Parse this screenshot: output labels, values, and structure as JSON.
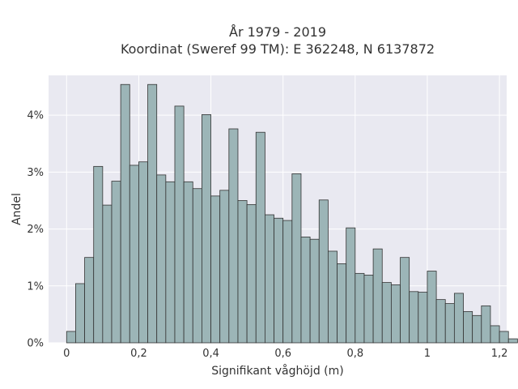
{
  "chart_data": {
    "type": "bar",
    "title_line1": "År 1979 - 2019",
    "title_line2": "Koordinat (Sweref 99 TM): E 362248, N 6137872",
    "xlabel": "Signifikant våghöjd (m)",
    "ylabel": "Andel",
    "xlim": [
      -0.05,
      1.22
    ],
    "ylim": [
      0,
      4.7
    ],
    "x_ticks": [
      0,
      0.2,
      0.4,
      0.6,
      0.8,
      1.0,
      1.2
    ],
    "x_tick_labels": [
      "0",
      "0,2",
      "0,4",
      "0,6",
      "0,8",
      "1",
      "1,2"
    ],
    "y_ticks": [
      0,
      1,
      2,
      3,
      4
    ],
    "y_tick_labels": [
      "0%",
      "1%",
      "2%",
      "3%",
      "4%"
    ],
    "bin_width": 0.025,
    "bin_start": 0.0,
    "values": [
      0.2,
      1.04,
      1.5,
      3.1,
      2.42,
      2.84,
      4.54,
      3.12,
      3.18,
      4.54,
      2.95,
      2.83,
      4.16,
      2.83,
      2.71,
      4.01,
      2.58,
      2.68,
      3.76,
      2.5,
      2.43,
      3.7,
      2.25,
      2.19,
      2.15,
      2.97,
      1.86,
      1.82,
      2.51,
      1.61,
      1.39,
      2.02,
      1.22,
      1.19,
      1.65,
      1.06,
      1.02,
      1.5,
      0.9,
      0.89,
      1.26,
      0.76,
      0.69,
      0.87,
      0.55,
      0.48,
      0.65,
      0.3,
      0.2,
      0.07
    ],
    "bar_fill": "#9cb5b7",
    "bar_stroke": "#333333",
    "plot_background": "#e9e9f1",
    "grid_color": "#ffffff",
    "grid": true,
    "legend": false
  }
}
